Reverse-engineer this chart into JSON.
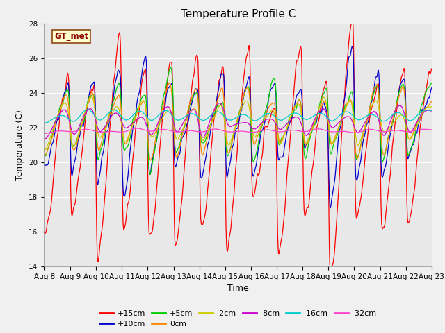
{
  "title": "Temperature Profile C",
  "xlabel": "Time",
  "ylabel": "Temperature (C)",
  "ylim": [
    14,
    28
  ],
  "xlim_days": [
    0,
    15
  ],
  "x_tick_labels": [
    "Aug 8",
    "Aug 9",
    "Aug 10",
    "Aug 11",
    "Aug 12",
    "Aug 13",
    "Aug 14",
    "Aug 15",
    "Aug 16",
    "Aug 17",
    "Aug 18",
    "Aug 19",
    "Aug 20",
    "Aug 21",
    "Aug 22",
    "Aug 23"
  ],
  "gt_met_label": "GT_met",
  "series": [
    {
      "label": "+15cm",
      "color": "#ff0000"
    },
    {
      "label": "+10cm",
      "color": "#0000cc"
    },
    {
      "label": "+5cm",
      "color": "#00cc00"
    },
    {
      "label": "0cm",
      "color": "#ff8800"
    },
    {
      "label": "-2cm",
      "color": "#cccc00"
    },
    {
      "label": "-8cm",
      "color": "#cc00cc"
    },
    {
      "label": "-16cm",
      "color": "#00cccc"
    },
    {
      "label": "-32cm",
      "color": "#ff44cc"
    }
  ],
  "plot_bg_color": "#e8e8e8",
  "fig_bg_color": "#f0f0f0",
  "title_fontsize": 11,
  "axis_label_fontsize": 9,
  "tick_fontsize": 7.5,
  "legend_fontsize": 8,
  "linewidth": 0.9
}
